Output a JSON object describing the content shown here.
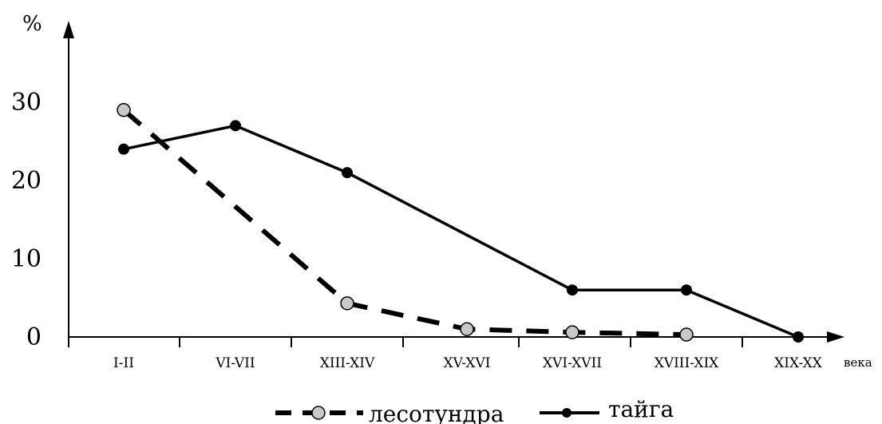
{
  "chart_data": {
    "type": "line",
    "ylabel": "%",
    "xlabel": "века",
    "categories": [
      "I-II",
      "VI-VII",
      "XIII-XIV",
      "XV-XVI",
      "XVI-XVII",
      "XVIII-XIX",
      "XIX-XX"
    ],
    "ylim": [
      0,
      30
    ],
    "yticks": [
      "0",
      "10",
      "20",
      "30"
    ],
    "grid": false,
    "legend_position": "bottom",
    "series": [
      {
        "name": "лесотундра",
        "style": "dashed",
        "marker_color": "#c8c8c8",
        "points": [
          {
            "category": "I-II",
            "value": 29
          },
          {
            "category": "XIII-XIV",
            "value": 4.3
          },
          {
            "category": "XV-XVI",
            "value": 1.0
          },
          {
            "category": "XVI-XVII",
            "value": 0.6
          },
          {
            "category": "XVIII-XIX",
            "value": 0.3
          }
        ]
      },
      {
        "name": "тайга",
        "style": "solid",
        "marker_color": "#000000",
        "points": [
          {
            "category": "I-II",
            "value": 24
          },
          {
            "category": "VI-VII",
            "value": 27
          },
          {
            "category": "XIII-XIV",
            "value": 21
          },
          {
            "category": "XVI-XVII",
            "value": 6
          },
          {
            "category": "XVIII-XIX",
            "value": 6
          },
          {
            "category": "XIX-XX",
            "value": 0
          }
        ]
      }
    ]
  }
}
